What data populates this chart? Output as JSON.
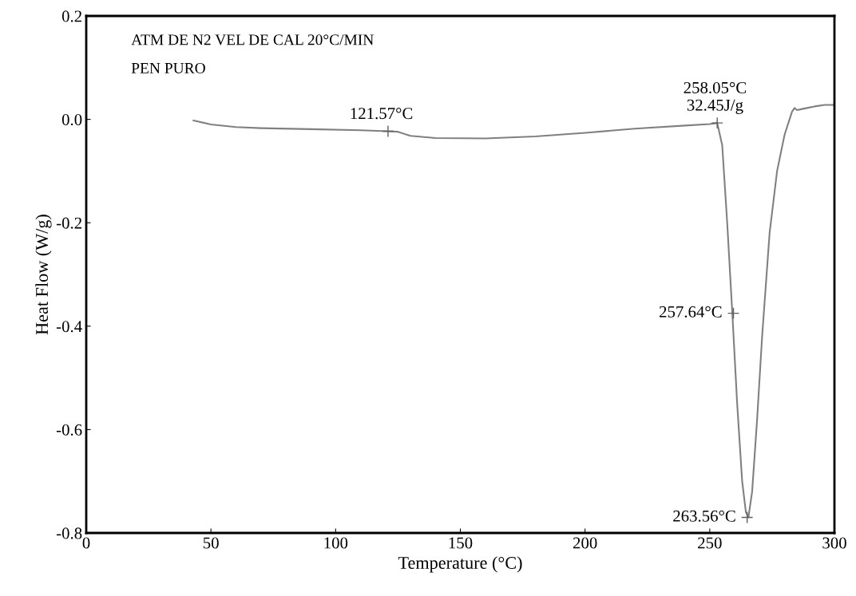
{
  "chart_data": {
    "type": "line",
    "xlabel": "Temperature (°C)",
    "ylabel": "Heat Flow (W/g)",
    "x": [
      43,
      50,
      60,
      70,
      90,
      110,
      121,
      125,
      130,
      140,
      160,
      180,
      200,
      220,
      240,
      250,
      253,
      255,
      257,
      259,
      261,
      263,
      264.5,
      265.5,
      267,
      269,
      271,
      274,
      277,
      280,
      283,
      284,
      285,
      287,
      292,
      296,
      300
    ],
    "series": [
      {
        "color": "#808080",
        "values": [
          -0.002,
          -0.01,
          -0.015,
          -0.017,
          -0.019,
          -0.021,
          -0.023,
          -0.024,
          -0.032,
          -0.036,
          -0.037,
          -0.033,
          -0.026,
          -0.018,
          -0.012,
          -0.009,
          -0.007,
          -0.05,
          -0.2,
          -0.37,
          -0.55,
          -0.7,
          -0.76,
          -0.77,
          -0.72,
          -0.58,
          -0.42,
          -0.22,
          -0.1,
          -0.03,
          0.015,
          0.022,
          0.018,
          0.02,
          0.025,
          0.028,
          0.028
        ]
      }
    ],
    "xlim": [
      0,
      300
    ],
    "ylim": [
      -0.8,
      0.2
    ],
    "xticks": [
      0,
      50,
      100,
      150,
      200,
      250,
      300
    ],
    "yticks": [
      {
        "value": 0.2,
        "label": "0.2"
      },
      {
        "value": 0.0,
        "label": "0.0"
      },
      {
        "value": -0.2,
        "label": "-0.2"
      },
      {
        "value": -0.4,
        "label": "-0.4"
      },
      {
        "value": -0.6,
        "label": "-0.6"
      },
      {
        "value": -0.8,
        "label": "-0.8"
      }
    ],
    "grid": false,
    "legend": false,
    "annotations": [
      "ATM DE N2 VEL DE CAL 20°C/MIN",
      "PEN PURO",
      {
        "text": "121.57°C",
        "x": 121,
        "y": -0.023
      },
      {
        "text": "258.05°C\n32.45J/g",
        "x": 253,
        "y": -0.007
      },
      {
        "text": "257.64°C",
        "x": 259.5,
        "y": -0.375
      },
      {
        "text": "263.56°C",
        "x": 265,
        "y": -0.77
      }
    ]
  }
}
